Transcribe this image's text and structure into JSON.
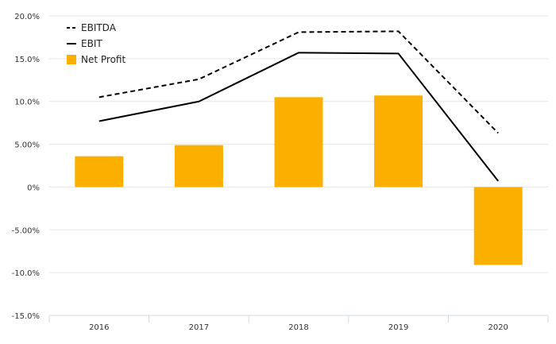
{
  "chart_data": {
    "type": "bar",
    "categories": [
      "2016",
      "2017",
      "2018",
      "2019",
      "2020"
    ],
    "series": [
      {
        "name": "EBITDA",
        "type": "line",
        "style": "dashed",
        "color": "#000000",
        "values": [
          10.5,
          12.6,
          18.1,
          18.2,
          6.3
        ]
      },
      {
        "name": "EBIT",
        "type": "line",
        "style": "solid",
        "color": "#000000",
        "values": [
          7.7,
          10.0,
          15.7,
          15.6,
          0.7
        ]
      },
      {
        "name": "Net Profit",
        "type": "bar",
        "color": "#FBB000",
        "values": [
          3.6,
          4.9,
          10.5,
          10.7,
          -9.1
        ]
      }
    ],
    "y_ticks": [
      "20.0%",
      "15.0%",
      "10.0%",
      "5.00%",
      "0%",
      "-5.00%",
      "-10.0%",
      "-15.0%"
    ],
    "y_tick_values": [
      20,
      15,
      10,
      5,
      0,
      -5,
      -10,
      -15
    ],
    "ylim": [
      -15,
      20
    ],
    "grid": true,
    "legend_position": "top-left",
    "title": "",
    "xlabel": "",
    "ylabel": ""
  }
}
